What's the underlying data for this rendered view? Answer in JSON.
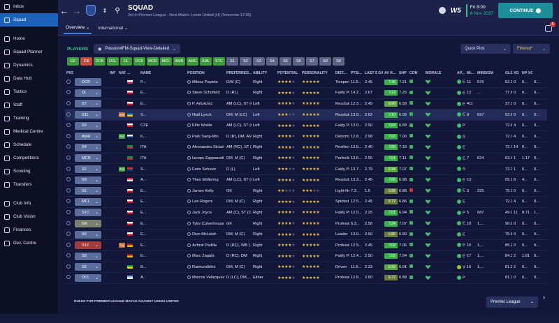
{
  "sidebar": {
    "items": [
      {
        "label": "Inbox",
        "icon": "inbox-icon"
      },
      {
        "label": "Squad",
        "icon": "squad-icon",
        "active": true
      },
      {
        "label": "Home",
        "icon": "home-icon"
      },
      {
        "label": "Squad Planner",
        "icon": "planner-icon"
      },
      {
        "label": "Dynamics",
        "icon": "dynamics-icon"
      },
      {
        "label": "Data Hub",
        "icon": "data-hub-icon"
      },
      {
        "label": "Tactics",
        "icon": "tactics-icon"
      },
      {
        "label": "Staff",
        "icon": "staff-icon"
      },
      {
        "label": "Training",
        "icon": "training-icon"
      },
      {
        "label": "Medical Centre",
        "icon": "medical-icon"
      },
      {
        "label": "Schedule",
        "icon": "schedule-icon"
      },
      {
        "label": "Competitions",
        "icon": "trophy-icon"
      },
      {
        "label": "Scouting",
        "icon": "scouting-icon"
      },
      {
        "label": "Transfers",
        "icon": "transfers-icon"
      },
      {
        "label": "Club Info",
        "icon": "club-info-icon"
      },
      {
        "label": "Club Vision",
        "icon": "club-vision-icon"
      },
      {
        "label": "Finances",
        "icon": "finances-icon"
      },
      {
        "label": "Dev. Centre",
        "icon": "dev-centre-icon"
      }
    ]
  },
  "header": {
    "title": "SQUAD",
    "subtitle": "3rd in Premier League - Next Match: Leeds United (H) (Tomorrow 17:30)",
    "brand": "W5",
    "date_line1": "Fri 8:00",
    "date_line2": "6 Nov 2037",
    "continue_label": "CONTINUE",
    "notification_count": "6"
  },
  "tabs": [
    {
      "label": "Overview ⌄",
      "active": true
    },
    {
      "label": "International ⌄",
      "active": false
    }
  ],
  "players_label": "PLAYERS",
  "view_select": "Passion4FM-Squad-View-Detailed",
  "quick_pick": "Quick Pick",
  "filter": "Filtered*",
  "position_buttons": [
    "GK",
    "CB",
    "DCB",
    "DCL",
    "DL",
    "DCR",
    "MCR",
    "MCL",
    "AMR",
    "AMC",
    "AML",
    "STC",
    "S1",
    "S2",
    "S3",
    "S4",
    "S5",
    "S6",
    "S7",
    "S8",
    "S9"
  ],
  "columns": [
    "PKD",
    "INF",
    "NAT",
    "...",
    "NAME",
    "POSITION",
    "PREFERRED...",
    "ABILITY",
    "POTENTIAL",
    "PERSONALITY",
    "DIST...",
    "PTS/...",
    "LAST 5 GA...",
    "AV R...",
    "SHP",
    "CON",
    "MORALE",
    "AP...",
    "MI...",
    "MINS/GM",
    "GLS",
    "XG",
    "NP-XG"
  ],
  "rows": [
    {
      "sel": "DCR",
      "nat": "POL",
      "dots": "P...",
      "name": "Milosz Popiela",
      "position": "D/M (C)",
      "foot": "Right",
      "abil": 4,
      "pot": 5,
      "pers": "Temperamen...",
      "dist": "11.5...",
      "pts": "2.45",
      "last": "7.46",
      "avr": "7.21",
      "morale": "Exceptional",
      "apps": "11",
      "mins": "576",
      "mgm": "52.36",
      "gls": "0",
      "xg": "0...",
      "np": "0..."
    },
    {
      "sel": "DL",
      "nat": "ENG",
      "dots": "E...",
      "name": "Steve Schofield",
      "position": "D (RL)",
      "foot": "Right",
      "abil": 4,
      "pot": 5,
      "pers": "Fairly Profes...",
      "dist": "14.2...",
      "pts": "2.67",
      "last": "7.12",
      "avr": "7.25",
      "morale": "Exceptional",
      "apps": "12",
      "mins": "...",
      "mgm": "77.60",
      "gls": "0",
      "xg": "0...",
      "np": "0..."
    },
    {
      "sel": "S7",
      "nat": "ENG",
      "dots": "E...",
      "name": "P. Artuković",
      "position": "AM (LC), ST (C)",
      "foot": "Left",
      "abil": 4,
      "pot": 5,
      "pers": "Resolute",
      "dist": "12.3...",
      "pts": "2.45",
      "last": "6.90",
      "avr": "6.93",
      "morale": "Excellent",
      "apps": "411",
      "mins": "",
      "mgm": "37.36",
      "gls": "0",
      "xg": "0...",
      "np": "0..."
    },
    {
      "sel": "S11",
      "nat": "SWE",
      "dots": "S...",
      "name": "Niall Lynch",
      "position": "DM, M (LC)",
      "foot": "Left",
      "abil": 3,
      "pot": 5,
      "pers": "Resolute",
      "dist": "13.9...",
      "pts": "2.62",
      "last": "7.10",
      "avr": "6.99",
      "morale": "Excellent",
      "apps": "8",
      "mins": "697",
      "mgm": "53.62",
      "gls": "0",
      "xg": "0...",
      "np": "0...",
      "hl": true
    },
    {
      "sel": "S9",
      "nat": "CZE",
      "dots": "CZE",
      "name": "Kifle Wolde",
      "position": "AM (LC), ST (C)",
      "foot": "Left",
      "abil": 4,
      "pot": 5,
      "pers": "Fairly Profes...",
      "dist": "13.0...",
      "pts": "2.50",
      "last": "7.04",
      "avr": "6.89",
      "morale": "Perfect",
      "apps": "",
      "mins": "",
      "mgm": "73.69",
      "gls": "4",
      "xg": "0...",
      "np": "0..."
    },
    {
      "sel": "AMR",
      "nat": "KOR",
      "dots": "K...",
      "name": "Park Sang-Min",
      "position": "D (R), DM, AM...",
      "foot": "Right",
      "abil": 4,
      "pot": 5,
      "pers": "Determined",
      "dist": "12.8...",
      "pts": "2.58",
      "last": "7.02",
      "avr": "7.00",
      "morale": "Superb",
      "apps": "",
      "mins": "",
      "mgm": "72.72",
      "gls": "4",
      "xg": "0...",
      "np": "0..."
    },
    {
      "sel": "S4",
      "nat": "ITA",
      "dots": "ITA",
      "name": "Alessandro Siclari",
      "position": "AM (RC), ST (C)",
      "foot": "Right",
      "abil": 4,
      "pot": 5,
      "pers": "Resilient",
      "dist": "12.5...",
      "pts": "2.40",
      "last": "7.06",
      "avr": "7.18",
      "morale": "Excellent",
      "apps": "",
      "mins": "",
      "mgm": "72.75",
      "gls": "14",
      "xg": "0...",
      "np": "0..."
    },
    {
      "sel": "MCR",
      "nat": "ITA",
      "dots": "ITA",
      "name": "Iacopo Zappasodi",
      "position": "DM, M (C)",
      "foot": "Right",
      "abil": 4,
      "pot": 5,
      "pers": "Perfectionist",
      "dist": "13.6...",
      "pts": "2.55",
      "last": "7.01",
      "avr": "7.11",
      "morale": "Excellent",
      "apps": "7",
      "mins": "634",
      "mgm": "63.40",
      "gls": "1",
      "xg": "1.17",
      "np": "0..."
    },
    {
      "sel": "S2",
      "nat": "SRB",
      "dots": "S...",
      "name": "Faris Sehovic",
      "position": "D (L)",
      "foot": "Left",
      "abil": 3,
      "pot": 5,
      "pers": "Fairly Profes...",
      "dist": "13.7...",
      "pts": "2.79",
      "last": "6.94",
      "avr": "7.07",
      "morale": "Superb",
      "apps": "",
      "mins": "",
      "mgm": "73.36",
      "gls": "1",
      "xg": "0...",
      "np": "0..."
    },
    {
      "sel": "S3",
      "nat": "AUT",
      "dots": "A...",
      "name": "Theo Möllering",
      "position": "AM (LC), ST (C)",
      "foot": "Left",
      "abil": 4,
      "pot": 5,
      "pers": "Resolute",
      "dist": "13.3...",
      "pts": "2.45",
      "last": "7.06",
      "avr": "6.98",
      "morale": "Excellent",
      "apps": "13",
      "mins": "",
      "mgm": "65.00",
      "gls": "8",
      "xg": "4...",
      "np": "0..."
    },
    {
      "sel": "S1",
      "nat": "ENG",
      "dots": "E...",
      "name": "James Kelly",
      "position": "GK",
      "foot": "Right",
      "abil": 2,
      "pot": 3,
      "pers": "Light-Hearted",
      "dist": "7.2...",
      "pts": "1.5",
      "last": "6.88",
      "avr": "6.88",
      "morale": "Extremely...",
      "apps": "3",
      "mins": "225",
      "mgm": "75.00",
      "gls": "0",
      "xg": "0...",
      "np": "0...",
      "shpR": true
    },
    {
      "sel": "MCL",
      "nat": "ENG",
      "dots": "E...",
      "name": "Lee Rogers",
      "position": "DM, M (C)",
      "foot": "Right",
      "abil": 4,
      "pot": 5,
      "pers": "Spirited",
      "dist": "12.5...",
      "pts": "2.45",
      "last": "6.72",
      "avr": "6.86",
      "morale": "Excellent",
      "apps": "",
      "mins": "",
      "mgm": "72.72",
      "gls": "4",
      "xg": "0...",
      "np": "0..."
    },
    {
      "sel": "STC",
      "nat": "ENG",
      "dots": "E...",
      "name": "Jack Joyce",
      "position": "AM (C), ST (C)",
      "foot": "Right",
      "abil": 4,
      "pot": 5,
      "pers": "Fairly Profes...",
      "dist": "12.0...",
      "pts": "2.25",
      "last": "7.01",
      "avr": "6.94",
      "morale": "Perfect",
      "apps": "5",
      "mins": "687",
      "mgm": "49.07",
      "gls": "11",
      "xg": "8.71",
      "np": "1..."
    },
    {
      "sel": "GK",
      "nat": "ENG",
      "dots": "E...",
      "name": "Tylor Culverhouse",
      "position": "GK",
      "foot": "Right",
      "abil": 4,
      "pot": 5,
      "pers": "Professional",
      "dist": "6.3...",
      "pts": "2.58",
      "last": "7.24",
      "avr": "7.07",
      "morale": "Exceptional",
      "apps": "19",
      "mins": "1,...",
      "mgm": "90.00",
      "gls": "0",
      "xg": "0...",
      "np": "0..."
    },
    {
      "sel": "S6",
      "nat": "ENG",
      "dots": "E...",
      "name": "Dion McLeish",
      "position": "DM, M (C)",
      "foot": "Right",
      "abil": 4,
      "pot": 5,
      "pers": "Leader",
      "dist": "13.0...",
      "pts": "2.50",
      "last": "6.86",
      "avr": "6.90",
      "morale": "Excellent",
      "apps": "",
      "mins": "",
      "mgm": "75.65",
      "gls": "0",
      "xg": "0...",
      "np": "0..."
    },
    {
      "sel": "S12",
      "nat": "ESP",
      "dots": "E...",
      "name": "Achraf Padilla",
      "position": "D (RC), WB (...",
      "foot": "Right",
      "abil": 4,
      "pot": 5,
      "pers": "Professional",
      "dist": "12.5...",
      "pts": "2.45",
      "last": "7.02",
      "avr": "7.06",
      "morale": "Exceptional",
      "apps": "16",
      "mins": "1,...",
      "mgm": "85.25",
      "gls": "0",
      "xg": "0...",
      "np": "0...",
      "red": true
    },
    {
      "sel": "S8",
      "nat": "ESP",
      "dots": "E...",
      "name": "Marc Zagalá",
      "position": "D (RC), DM",
      "foot": "Right",
      "abil": 4,
      "pot": 5,
      "pers": "Fairly Profes...",
      "dist": "12.4...",
      "pts": "2.50",
      "last": "7.02",
      "avr": "7.04",
      "morale": "Exceptional",
      "apps": "17",
      "mins": "1,...",
      "mgm": "84.35",
      "gls": "2",
      "xg": "1.81",
      "np": "0..."
    },
    {
      "sel": "S5",
      "nat": "BRA",
      "dots": "B...",
      "name": "Raimundinho",
      "position": "DM, M (C)",
      "foot": "Right",
      "abil": 4,
      "pot": 5,
      "pers": "Driven",
      "dist": "11.6...",
      "pts": "2.33",
      "last": "6.92",
      "avr": "6.91",
      "morale": "Very Good",
      "apps": "16",
      "mins": "1,...",
      "mgm": "81.12",
      "gls": "2",
      "xg": "0...",
      "np": "0..."
    },
    {
      "sel": "DCL",
      "nat": "ARG",
      "dots": "A...",
      "name": "Marcos Velázquez",
      "position": "D (LC), DM,...",
      "foot": "Either",
      "abil": 4,
      "pot": 5,
      "pers": "Professional",
      "dist": "12.8...",
      "pts": "2.60",
      "last": "6.72",
      "avr": "6.88",
      "morale": "Perfect",
      "apps": "",
      "mins": "",
      "mgm": "81.33",
      "gls": "0",
      "xg": "0...",
      "np": "0..."
    }
  ],
  "footer": {
    "rules_text": "RULES FOR PREMIER LEAGUE MATCH AGAINST LEEDS UNITED",
    "competition": "Premier League"
  },
  "colors": {
    "accent": "#1d8d9a",
    "positive": "#3bc06a",
    "select": "#1c62b9"
  }
}
